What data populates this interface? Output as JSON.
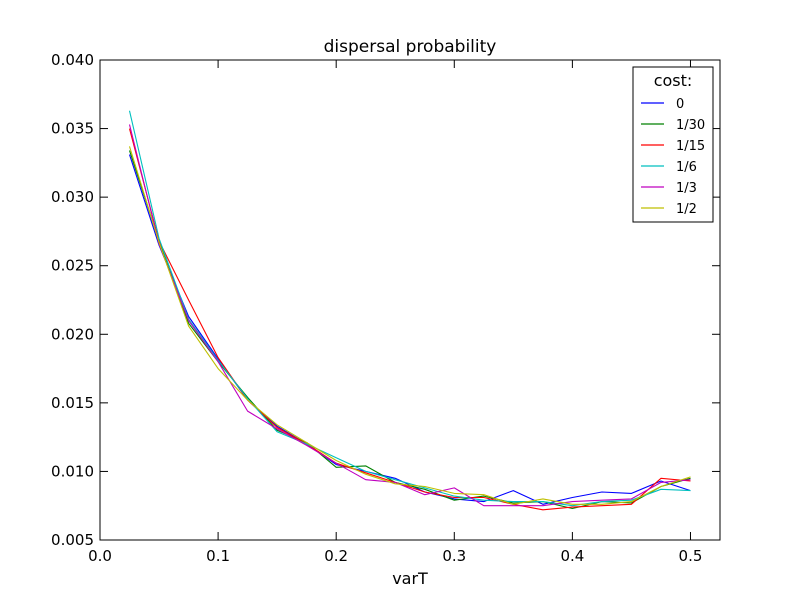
{
  "chart_data": {
    "type": "line",
    "title": "dispersal probability",
    "xlabel": "varT",
    "ylabel": "",
    "xlim": [
      0.0,
      0.525
    ],
    "ylim": [
      0.005,
      0.04
    ],
    "xticks": [
      0.0,
      0.1,
      0.2,
      0.3,
      0.4,
      0.5
    ],
    "xtick_labels": [
      "0.0",
      "0.1",
      "0.2",
      "0.3",
      "0.4",
      "0.5"
    ],
    "yticks": [
      0.005,
      0.01,
      0.015,
      0.02,
      0.025,
      0.03,
      0.035,
      0.04
    ],
    "ytick_labels": [
      "0.005",
      "0.010",
      "0.015",
      "0.020",
      "0.025",
      "0.030",
      "0.035",
      "0.040"
    ],
    "grid": false,
    "legend": {
      "title": "cost:",
      "placement": "top-right"
    },
    "x": [
      0.025,
      0.05,
      0.075,
      0.1,
      0.125,
      0.15,
      0.175,
      0.2,
      0.225,
      0.25,
      0.275,
      0.3,
      0.325,
      0.35,
      0.375,
      0.4,
      0.425,
      0.45,
      0.475,
      0.5
    ],
    "series": [
      {
        "name": "0",
        "color": "#0000ff",
        "values": [
          0.0331,
          0.0265,
          0.0213,
          0.0182,
          0.0152,
          0.0133,
          0.012,
          0.0105,
          0.01,
          0.0095,
          0.0085,
          0.008,
          0.0078,
          0.0086,
          0.0076,
          0.0081,
          0.0085,
          0.0084,
          0.0093,
          0.0086
        ]
      },
      {
        "name": "1/30",
        "color": "#008000",
        "values": [
          0.0334,
          0.0268,
          0.0208,
          0.018,
          0.0154,
          0.013,
          0.0121,
          0.0103,
          0.0104,
          0.0092,
          0.0087,
          0.0079,
          0.0082,
          0.0077,
          0.0078,
          0.0073,
          0.0078,
          0.0077,
          0.0089,
          0.0095
        ]
      },
      {
        "name": "1/15",
        "color": "#ff0000",
        "values": [
          0.035,
          0.0268,
          0.0225,
          0.0183,
          0.0152,
          0.0132,
          0.012,
          0.0106,
          0.0099,
          0.0092,
          0.0085,
          0.0081,
          0.0081,
          0.0076,
          0.0072,
          0.0074,
          0.0075,
          0.0076,
          0.0095,
          0.0093
        ]
      },
      {
        "name": "1/6",
        "color": "#00bfbf",
        "values": [
          0.0363,
          0.027,
          0.0211,
          0.0181,
          0.0153,
          0.0129,
          0.012,
          0.011,
          0.01,
          0.0094,
          0.0088,
          0.0082,
          0.0079,
          0.0078,
          0.0078,
          0.0075,
          0.0078,
          0.0079,
          0.0087,
          0.0086
        ]
      },
      {
        "name": "1/3",
        "color": "#bf00bf",
        "values": [
          0.0353,
          0.0266,
          0.021,
          0.018,
          0.0144,
          0.0131,
          0.0119,
          0.0106,
          0.0094,
          0.0092,
          0.0083,
          0.0088,
          0.0075,
          0.0075,
          0.0075,
          0.0078,
          0.0079,
          0.008,
          0.0092,
          0.0094
        ]
      },
      {
        "name": "1/2",
        "color": "#bfbf00",
        "values": [
          0.0337,
          0.0267,
          0.0206,
          0.0175,
          0.0152,
          0.0134,
          0.0121,
          0.0108,
          0.0098,
          0.0091,
          0.0089,
          0.0084,
          0.0083,
          0.0076,
          0.008,
          0.0076,
          0.0076,
          0.0078,
          0.0089,
          0.0096
        ]
      }
    ]
  }
}
